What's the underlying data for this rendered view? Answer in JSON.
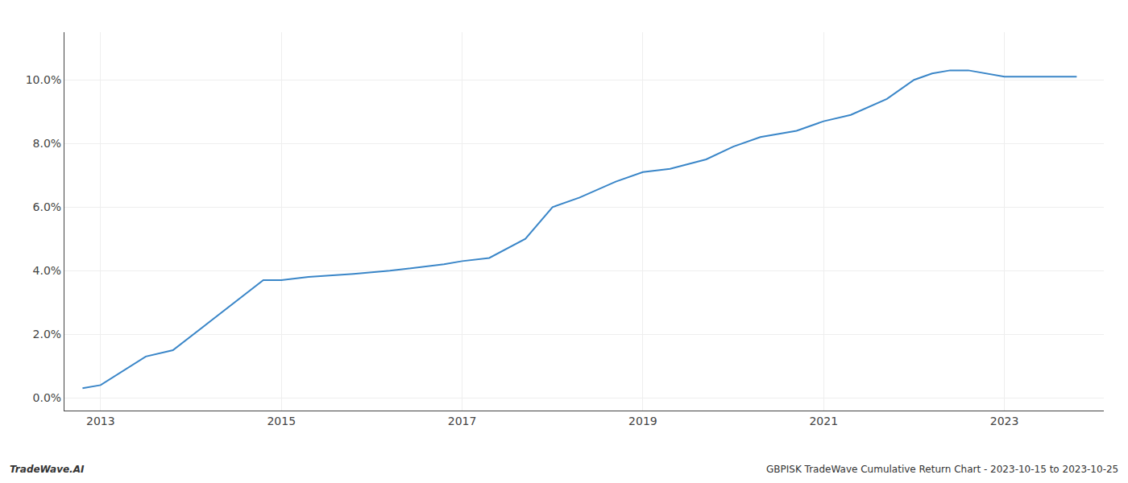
{
  "chart_data": {
    "type": "line",
    "x": [
      2012.8,
      2013.0,
      2013.5,
      2013.8,
      2014.8,
      2015.0,
      2015.3,
      2015.8,
      2016.2,
      2016.5,
      2016.8,
      2017.0,
      2017.3,
      2017.7,
      2018.0,
      2018.3,
      2018.7,
      2019.0,
      2019.3,
      2019.7,
      2020.0,
      2020.3,
      2020.7,
      2021.0,
      2021.3,
      2021.7,
      2022.0,
      2022.2,
      2022.4,
      2022.6,
      2022.8,
      2023.0,
      2023.5,
      2023.8
    ],
    "values": [
      0.003,
      0.004,
      0.013,
      0.015,
      0.037,
      0.037,
      0.038,
      0.039,
      0.04,
      0.041,
      0.042,
      0.043,
      0.044,
      0.05,
      0.06,
      0.063,
      0.068,
      0.071,
      0.072,
      0.075,
      0.079,
      0.082,
      0.084,
      0.087,
      0.089,
      0.094,
      0.1,
      0.102,
      0.103,
      0.103,
      0.102,
      0.101,
      0.101,
      0.101
    ],
    "color": "#3a86c8",
    "xlim": [
      2012.6,
      2024.1
    ],
    "xticks": [
      2013,
      2015,
      2017,
      2019,
      2021,
      2023
    ],
    "ylim": [
      -0.004,
      0.115
    ],
    "yticks": [
      {
        "value": 0.0,
        "label": "0.0%"
      },
      {
        "value": 0.02,
        "label": "2.0%"
      },
      {
        "value": 0.04,
        "label": "4.0%"
      },
      {
        "value": 0.06,
        "label": "6.0%"
      },
      {
        "value": 0.08,
        "label": "8.0%"
      },
      {
        "value": 0.1,
        "label": "10.0%"
      }
    ],
    "grid": true,
    "annotations": [
      "TradeWave.AI",
      "GBPISK TradeWave Cumulative Return Chart - 2023-10-15 to 2023-10-25"
    ]
  }
}
